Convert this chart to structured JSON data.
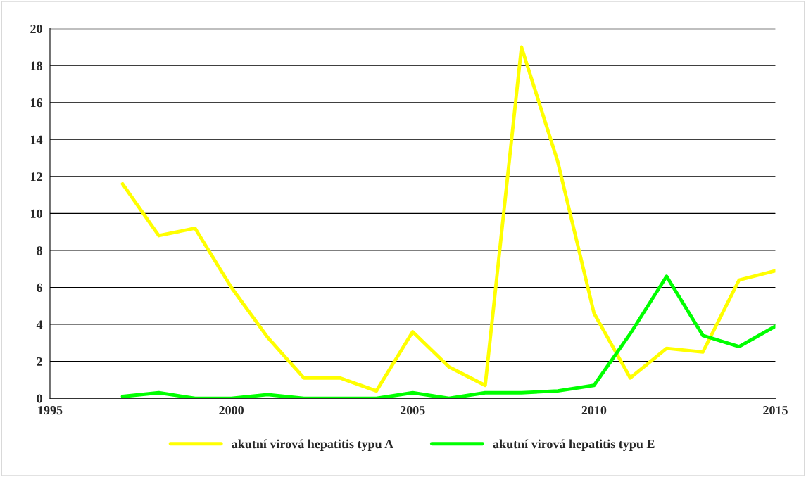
{
  "chart_data": {
    "type": "line",
    "x": [
      1997,
      1998,
      1999,
      2000,
      2001,
      2002,
      2003,
      2004,
      2005,
      2006,
      2007,
      2008,
      2009,
      2010,
      2011,
      2012,
      2013,
      2014,
      2015
    ],
    "series": [
      {
        "name": "akutní virová hepatitis typu A",
        "color": "#ffff00",
        "values": [
          11.6,
          8.8,
          9.2,
          6.0,
          3.3,
          1.1,
          1.1,
          0.4,
          3.6,
          1.7,
          0.7,
          19.0,
          12.8,
          4.6,
          1.1,
          2.7,
          2.5,
          6.4,
          6.9
        ]
      },
      {
        "name": "akutní virová hepatitis typu E",
        "color": "#00ff00",
        "values": [
          0.1,
          0.3,
          0.0,
          0.0,
          0.2,
          0.0,
          0.0,
          0.0,
          0.3,
          0.0,
          0.3,
          0.3,
          0.4,
          0.7,
          3.5,
          6.6,
          3.4,
          2.8,
          3.9
        ]
      }
    ],
    "xlim": [
      1995,
      2015
    ],
    "xticks": [
      1995,
      2000,
      2005,
      2010,
      2015
    ],
    "ylim": [
      0,
      20
    ],
    "yticks": [
      0,
      2,
      4,
      6,
      8,
      10,
      12,
      14,
      16,
      18,
      20
    ],
    "grid": "y",
    "legend": "bottom",
    "marker": "none",
    "line_style": "solid"
  }
}
